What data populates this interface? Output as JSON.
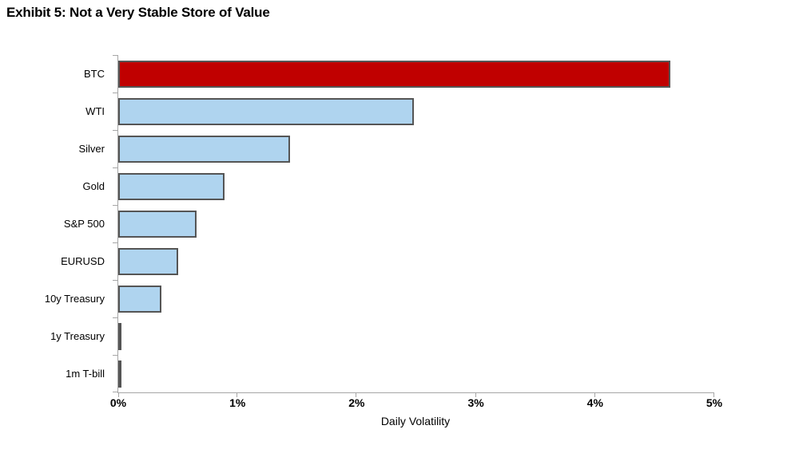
{
  "title": "Exhibit 5: Not a Very Stable Store of Value",
  "chart_data": {
    "type": "bar",
    "orientation": "horizontal",
    "title": "Exhibit 5: Not a Very Stable Store of Value",
    "categories": [
      "BTC",
      "WTI",
      "Silver",
      "Gold",
      "S&P 500",
      "EURUSD",
      "10y Treasury",
      "1y Treasury",
      "1m T-bill"
    ],
    "values": [
      4.63,
      2.48,
      1.44,
      0.89,
      0.66,
      0.5,
      0.36,
      0.03,
      0.01
    ],
    "unit": "%",
    "xlabel": "Daily Volatility",
    "ylabel": "",
    "x_ticks": [
      "0%",
      "1%",
      "2%",
      "3%",
      "4%",
      "5%"
    ],
    "x_tick_values": [
      0,
      1,
      2,
      3,
      4,
      5
    ],
    "xlim": [
      0,
      5
    ],
    "grid": false,
    "legend": "none",
    "highlight_category": "BTC",
    "colors": {
      "highlight_bar": "#c00000",
      "default_bar": "#afd4ef",
      "bar_border": "#555555",
      "axis": "#a6a6a6",
      "text": "#000000"
    }
  }
}
